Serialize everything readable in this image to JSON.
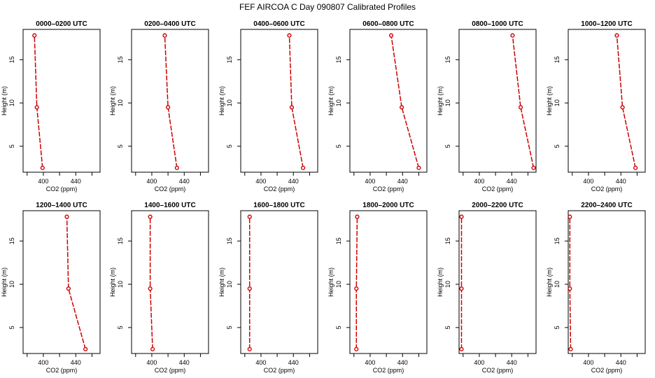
{
  "title": "FEF AIRCOA C  Day 090807  Calibrated Profiles",
  "chart_data": {
    "type": "line",
    "layout": "2x6 small multiples",
    "xlabel": "CO2 (ppm)",
    "ylabel": "Height (m)",
    "xlim": [
      375,
      470
    ],
    "ylim": [
      2,
      18.5
    ],
    "xticks": [
      400,
      440
    ],
    "yticks": [
      5,
      10,
      15
    ],
    "series_color": "#cc0000",
    "panels": [
      {
        "title": "0000–0200 UTC",
        "heights": [
          2.5,
          9.5,
          17.8
        ],
        "co2": [
          399,
          392,
          389
        ]
      },
      {
        "title": "0200–0400 UTC",
        "heights": [
          2.5,
          9.5,
          17.8
        ],
        "co2": [
          431,
          420,
          416
        ]
      },
      {
        "title": "0400–0600 UTC",
        "heights": [
          2.5,
          9.5,
          17.8
        ],
        "co2": [
          452,
          438,
          435
        ]
      },
      {
        "title": "0600–0800 UTC",
        "heights": [
          2.5,
          9.5,
          17.8
        ],
        "co2": [
          460,
          439,
          426
        ]
      },
      {
        "title": "0800–1000 UTC",
        "heights": [
          2.5,
          9.5,
          17.8
        ],
        "co2": [
          467,
          451,
          441
        ]
      },
      {
        "title": "1000–1200 UTC",
        "heights": [
          2.5,
          9.5,
          17.8
        ],
        "co2": [
          458,
          442,
          435
        ]
      },
      {
        "title": "1200–1400 UTC",
        "heights": [
          2.5,
          9.5,
          17.8
        ],
        "co2": [
          452,
          431,
          429
        ]
      },
      {
        "title": "1400–1600 UTC",
        "heights": [
          2.5,
          9.5,
          17.8
        ],
        "co2": [
          401,
          398,
          398
        ]
      },
      {
        "title": "1600–1800 UTC",
        "heights": [
          2.5,
          9.5,
          17.8
        ],
        "co2": [
          386,
          386,
          386
        ]
      },
      {
        "title": "1800–2000 UTC",
        "heights": [
          2.5,
          9.5,
          17.8
        ],
        "co2": [
          383,
          383,
          384
        ]
      },
      {
        "title": "2000–2200 UTC",
        "heights": [
          2.5,
          9.5,
          17.8
        ],
        "co2": [
          378,
          378,
          378
        ]
      },
      {
        "title": "2200–2400 UTC",
        "heights": [
          2.5,
          9.5,
          17.8
        ],
        "co2": [
          378,
          377,
          377
        ]
      }
    ]
  }
}
